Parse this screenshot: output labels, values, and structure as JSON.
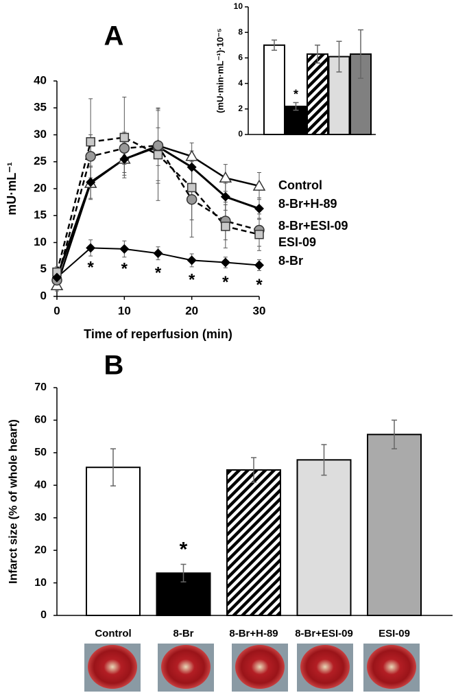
{
  "chart_data": [
    {
      "type": "line",
      "panel": "A",
      "ylabel": "mU·mL⁻¹",
      "xlabel": "Time of  reperfusion (min)",
      "x": [
        0,
        5,
        10,
        15,
        20,
        25,
        30
      ],
      "xlim": [
        0,
        30
      ],
      "xticks": [
        0,
        10,
        20,
        30
      ],
      "ylim": [
        0,
        40
      ],
      "yticks": [
        0,
        5,
        10,
        15,
        20,
        25,
        30,
        35,
        40
      ],
      "series": [
        {
          "name": "Control",
          "color": "#ffffff",
          "marker": "triangle",
          "dash": false,
          "width": 2.5,
          "values": [
            2,
            21,
            25.5,
            28,
            26,
            22,
            20.5
          ],
          "errors": [
            1,
            3,
            3,
            6.5,
            2.5,
            2.5,
            2.5
          ]
        },
        {
          "name": "8-Br+H-89",
          "color": "#000000",
          "marker": "diamond",
          "dash": false,
          "width": 3,
          "values": [
            3.5,
            21.2,
            25.5,
            27.8,
            24,
            18.5,
            16.3
          ],
          "errors": [
            1,
            3,
            2.5,
            3.5,
            3,
            2.5,
            2
          ]
        },
        {
          "name": "8-Br+ESI-09",
          "color": "#999999",
          "marker": "circle",
          "dash": true,
          "width": 2.5,
          "values": [
            3,
            26,
            27.5,
            28,
            18,
            14,
            12.3
          ],
          "errors": [
            1,
            4,
            3,
            7,
            7,
            3.5,
            3
          ]
        },
        {
          "name": "ESI-09",
          "color": "#c8c8c8",
          "marker": "square",
          "dash": true,
          "width": 2.5,
          "values": [
            4.5,
            28.7,
            29.5,
            26.3,
            20.2,
            13,
            11.5
          ],
          "errors": [
            1,
            8,
            7.5,
            8.5,
            6,
            4,
            3
          ]
        },
        {
          "name": "8-Br",
          "color": "#000000",
          "marker": "diamond",
          "dash": false,
          "width": 2,
          "values": [
            3.5,
            9,
            8.8,
            8,
            6.7,
            6.3,
            5.8
          ],
          "errors": [
            1,
            1.5,
            1.5,
            1.2,
            1.2,
            1,
            1
          ]
        }
      ],
      "significance_label": "*",
      "significant": [
        false,
        true,
        true,
        true,
        true,
        true,
        true
      ]
    },
    {
      "type": "bar",
      "ylabel": "(mU·min·mL⁻¹)·10⁻⁵",
      "categories": [
        null,
        null,
        null,
        null,
        null
      ],
      "values": [
        7,
        2.2,
        6.3,
        6.1,
        6.3
      ],
      "errors": [
        0.4,
        0.3,
        0.7,
        1.2,
        1.9
      ],
      "colors": [
        "#ffffff",
        "#000000",
        "hatch",
        "#dddddd",
        "#808080"
      ],
      "ylim": [
        0,
        10
      ],
      "yticks": [
        0,
        2,
        4,
        6,
        8,
        10
      ],
      "significance_label": "*",
      "significant": [
        false,
        true,
        false,
        false,
        false
      ]
    },
    {
      "type": "bar",
      "panel": "B",
      "ylabel": "Infarct size (% of whole heart)",
      "categories": [
        "Control",
        "8-Br",
        "8-Br+H-89",
        "8-Br+ESI-09",
        "ESI-09"
      ],
      "values": [
        45.5,
        13,
        44.7,
        47.8,
        55.6
      ],
      "errors": [
        5.7,
        2.7,
        3.8,
        4.7,
        4.4
      ],
      "colors": [
        "#ffffff",
        "#000000",
        "hatch",
        "#dddddd",
        "#aaaaaa"
      ],
      "ylim": [
        0,
        70
      ],
      "yticks": [
        0,
        10,
        20,
        30,
        40,
        50,
        60,
        70
      ],
      "significance_label": "*",
      "significant": [
        false,
        true,
        false,
        false,
        false
      ]
    }
  ]
}
